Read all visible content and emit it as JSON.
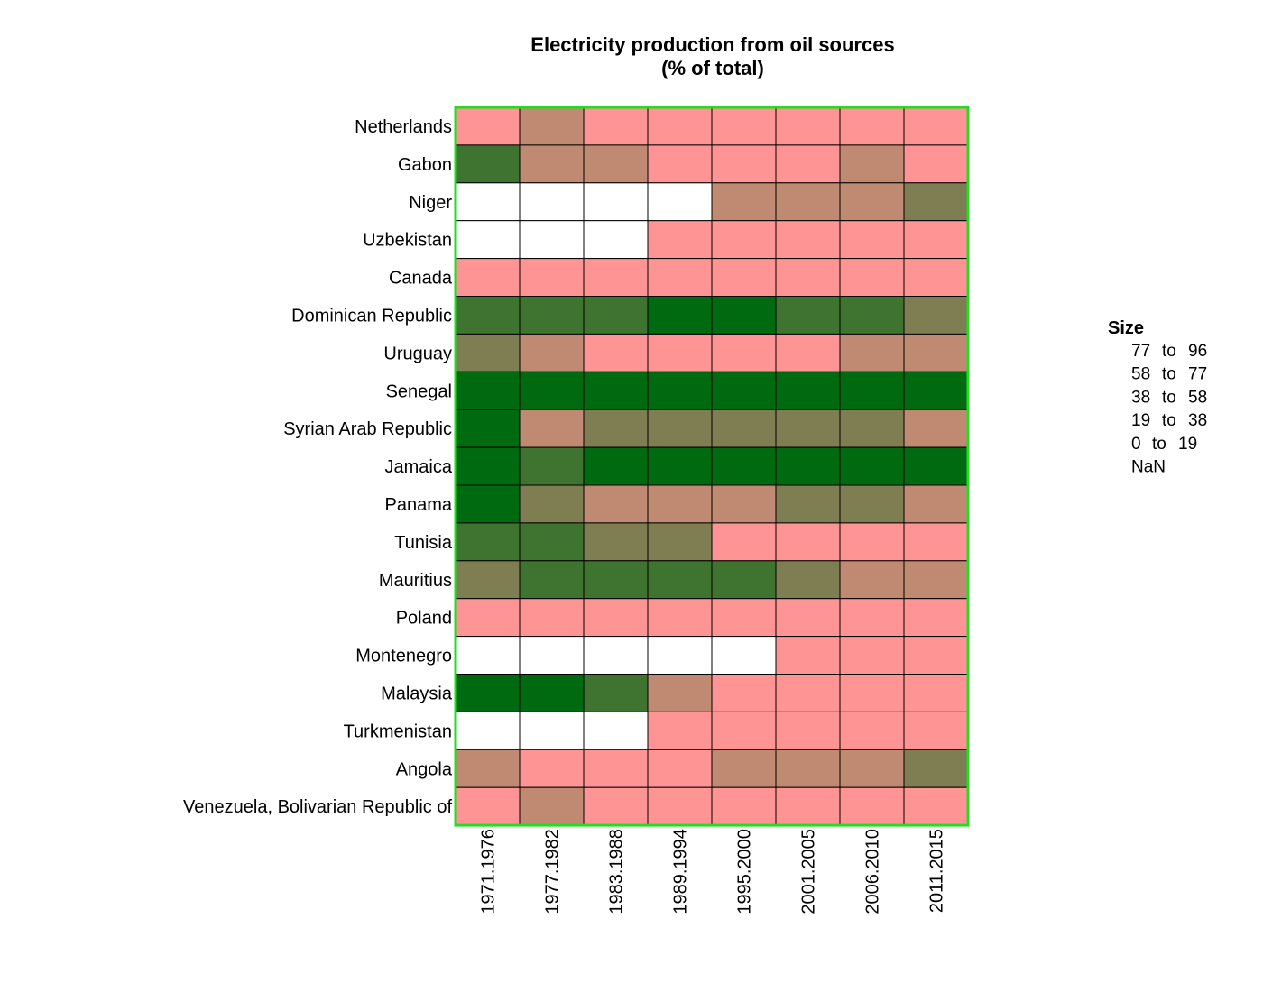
{
  "chart_data": {
    "type": "heatmap",
    "title": [
      "Electricity production from oil sources",
      "(% of total)"
    ],
    "columns": [
      "1971.1976",
      "1977.1982",
      "1983.1988",
      "1989.1994",
      "1995.2000",
      "2001.2005",
      "2006.2010",
      "2011.2015"
    ],
    "rows": [
      "Netherlands",
      "Gabon",
      "Niger",
      "Uzbekistan",
      "Canada",
      "Dominican Republic",
      "Uruguay",
      "Senegal",
      "Syrian Arab Republic",
      "Jamaica",
      "Panama",
      "Tunisia",
      "Mauritius",
      "Poland",
      "Montenegro",
      "Malaysia",
      "Turkmenistan",
      "Angola",
      "Venezuela, Bolivarian Republic of"
    ],
    "bin_legend_title": "Size",
    "bins": [
      {
        "range": "77 to 96",
        "color": "#006a10"
      },
      {
        "range": "58 to 77",
        "color": "#3f7430"
      },
      {
        "range": "38 to 58",
        "color": "#7f7d52"
      },
      {
        "range": "19 to 38",
        "color": "#c08a72"
      },
      {
        "range": "0 to 19",
        "color": "#ff9494"
      },
      {
        "range": "NaN",
        "color": "#ffffff"
      }
    ],
    "cell_bins": [
      [
        "0 to 19",
        "19 to 38",
        "0 to 19",
        "0 to 19",
        "0 to 19",
        "0 to 19",
        "0 to 19",
        "0 to 19"
      ],
      [
        "58 to 77",
        "19 to 38",
        "19 to 38",
        "0 to 19",
        "0 to 19",
        "0 to 19",
        "19 to 38",
        "0 to 19"
      ],
      [
        "NaN",
        "NaN",
        "NaN",
        "NaN",
        "19 to 38",
        "19 to 38",
        "19 to 38",
        "38 to 58"
      ],
      [
        "NaN",
        "NaN",
        "NaN",
        "0 to 19",
        "0 to 19",
        "0 to 19",
        "0 to 19",
        "0 to 19"
      ],
      [
        "0 to 19",
        "0 to 19",
        "0 to 19",
        "0 to 19",
        "0 to 19",
        "0 to 19",
        "0 to 19",
        "0 to 19"
      ],
      [
        "58 to 77",
        "58 to 77",
        "58 to 77",
        "77 to 96",
        "77 to 96",
        "58 to 77",
        "58 to 77",
        "38 to 58"
      ],
      [
        "38 to 58",
        "19 to 38",
        "0 to 19",
        "0 to 19",
        "0 to 19",
        "0 to 19",
        "19 to 38",
        "19 to 38"
      ],
      [
        "77 to 96",
        "77 to 96",
        "77 to 96",
        "77 to 96",
        "77 to 96",
        "77 to 96",
        "77 to 96",
        "77 to 96"
      ],
      [
        "77 to 96",
        "19 to 38",
        "38 to 58",
        "38 to 58",
        "38 to 58",
        "38 to 58",
        "38 to 58",
        "19 to 38"
      ],
      [
        "77 to 96",
        "58 to 77",
        "77 to 96",
        "77 to 96",
        "77 to 96",
        "77 to 96",
        "77 to 96",
        "77 to 96"
      ],
      [
        "77 to 96",
        "38 to 58",
        "19 to 38",
        "19 to 38",
        "19 to 38",
        "38 to 58",
        "38 to 58",
        "19 to 38"
      ],
      [
        "58 to 77",
        "58 to 77",
        "38 to 58",
        "38 to 58",
        "0 to 19",
        "0 to 19",
        "0 to 19",
        "0 to 19"
      ],
      [
        "38 to 58",
        "58 to 77",
        "58 to 77",
        "58 to 77",
        "58 to 77",
        "38 to 58",
        "19 to 38",
        "19 to 38"
      ],
      [
        "0 to 19",
        "0 to 19",
        "0 to 19",
        "0 to 19",
        "0 to 19",
        "0 to 19",
        "0 to 19",
        "0 to 19"
      ],
      [
        "NaN",
        "NaN",
        "NaN",
        "NaN",
        "NaN",
        "0 to 19",
        "0 to 19",
        "0 to 19"
      ],
      [
        "77 to 96",
        "77 to 96",
        "58 to 77",
        "19 to 38",
        "0 to 19",
        "0 to 19",
        "0 to 19",
        "0 to 19"
      ],
      [
        "NaN",
        "NaN",
        "NaN",
        "0 to 19",
        "0 to 19",
        "0 to 19",
        "0 to 19",
        "0 to 19"
      ],
      [
        "19 to 38",
        "0 to 19",
        "0 to 19",
        "0 to 19",
        "19 to 38",
        "19 to 38",
        "19 to 38",
        "38 to 58"
      ],
      [
        "0 to 19",
        "19 to 38",
        "0 to 19",
        "0 to 19",
        "0 to 19",
        "0 to 19",
        "0 to 19",
        "0 to 19"
      ]
    ],
    "frame_color": "#22dd22",
    "cell_border_color": "#000000"
  }
}
